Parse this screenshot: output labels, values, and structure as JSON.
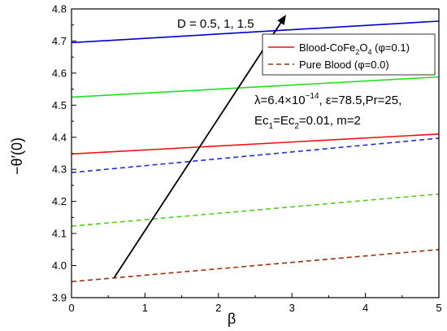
{
  "chart_data": {
    "type": "line",
    "xlabel": "β",
    "ylabel": "−θ′(0)",
    "xlim": [
      0,
      5
    ],
    "ylim": [
      3.9,
      4.8
    ],
    "xticks": [
      "0",
      "1",
      "2",
      "3",
      "4",
      "5"
    ],
    "yticks": [
      "3.9",
      "4.0",
      "4.1",
      "4.2",
      "4.3",
      "4.4",
      "4.5",
      "4.6",
      "4.7",
      "4.8"
    ],
    "xtick_values": [
      0,
      1,
      2,
      3,
      4,
      5
    ],
    "ytick_values": [
      3.9,
      4.0,
      4.1,
      4.2,
      4.3,
      4.4,
      4.5,
      4.6,
      4.7,
      4.8
    ],
    "series": [
      {
        "color": "#0000cc",
        "dash": "solid",
        "x": [
          0,
          5
        ],
        "y": [
          4.695,
          4.762
        ]
      },
      {
        "color": "#22dd22",
        "dash": "solid",
        "x": [
          0,
          5
        ],
        "y": [
          4.525,
          4.588
        ]
      },
      {
        "color": "#ee1111",
        "dash": "solid",
        "x": [
          0,
          5
        ],
        "y": [
          4.348,
          4.41
        ]
      },
      {
        "color": "#1a33cc",
        "dash": "dashed",
        "x": [
          0,
          5
        ],
        "y": [
          4.29,
          4.397
        ]
      },
      {
        "color": "#55cc22",
        "dash": "dashed",
        "x": [
          0,
          5
        ],
        "y": [
          4.123,
          4.223
        ]
      },
      {
        "color": "#993311",
        "dash": "dashed",
        "x": [
          0,
          5
        ],
        "y": [
          3.95,
          4.05
        ]
      }
    ],
    "legend": {
      "position": "top-right",
      "entries": [
        {
          "label_main": "Blood-CoFe",
          "label_sub": "2",
          "label_mid": "O",
          "label_sub2": "4",
          "label_end": " (φ=0.1)",
          "color": "#ee1111",
          "dash": "solid"
        },
        {
          "label_main": "Pure Blood (φ=0.0)",
          "color": "#993311",
          "dash": "dashed"
        }
      ]
    },
    "arrow": {
      "from": [
        0.58,
        3.962
      ],
      "to": [
        2.92,
        4.782
      ],
      "color": "#000000"
    },
    "annotations": {
      "arrow_label": "D = 0.5, 1, 1.5",
      "params_line1": {
        "pre": "λ=6.4×10",
        "sup": "−14",
        "post": ", ε=78.5,Pr=25,"
      },
      "params_line2": {
        "a": "Ec",
        "a_sub": "1",
        "b": "=Ec",
        "b_sub": "2",
        "c": "=0.01, m=2"
      }
    }
  }
}
